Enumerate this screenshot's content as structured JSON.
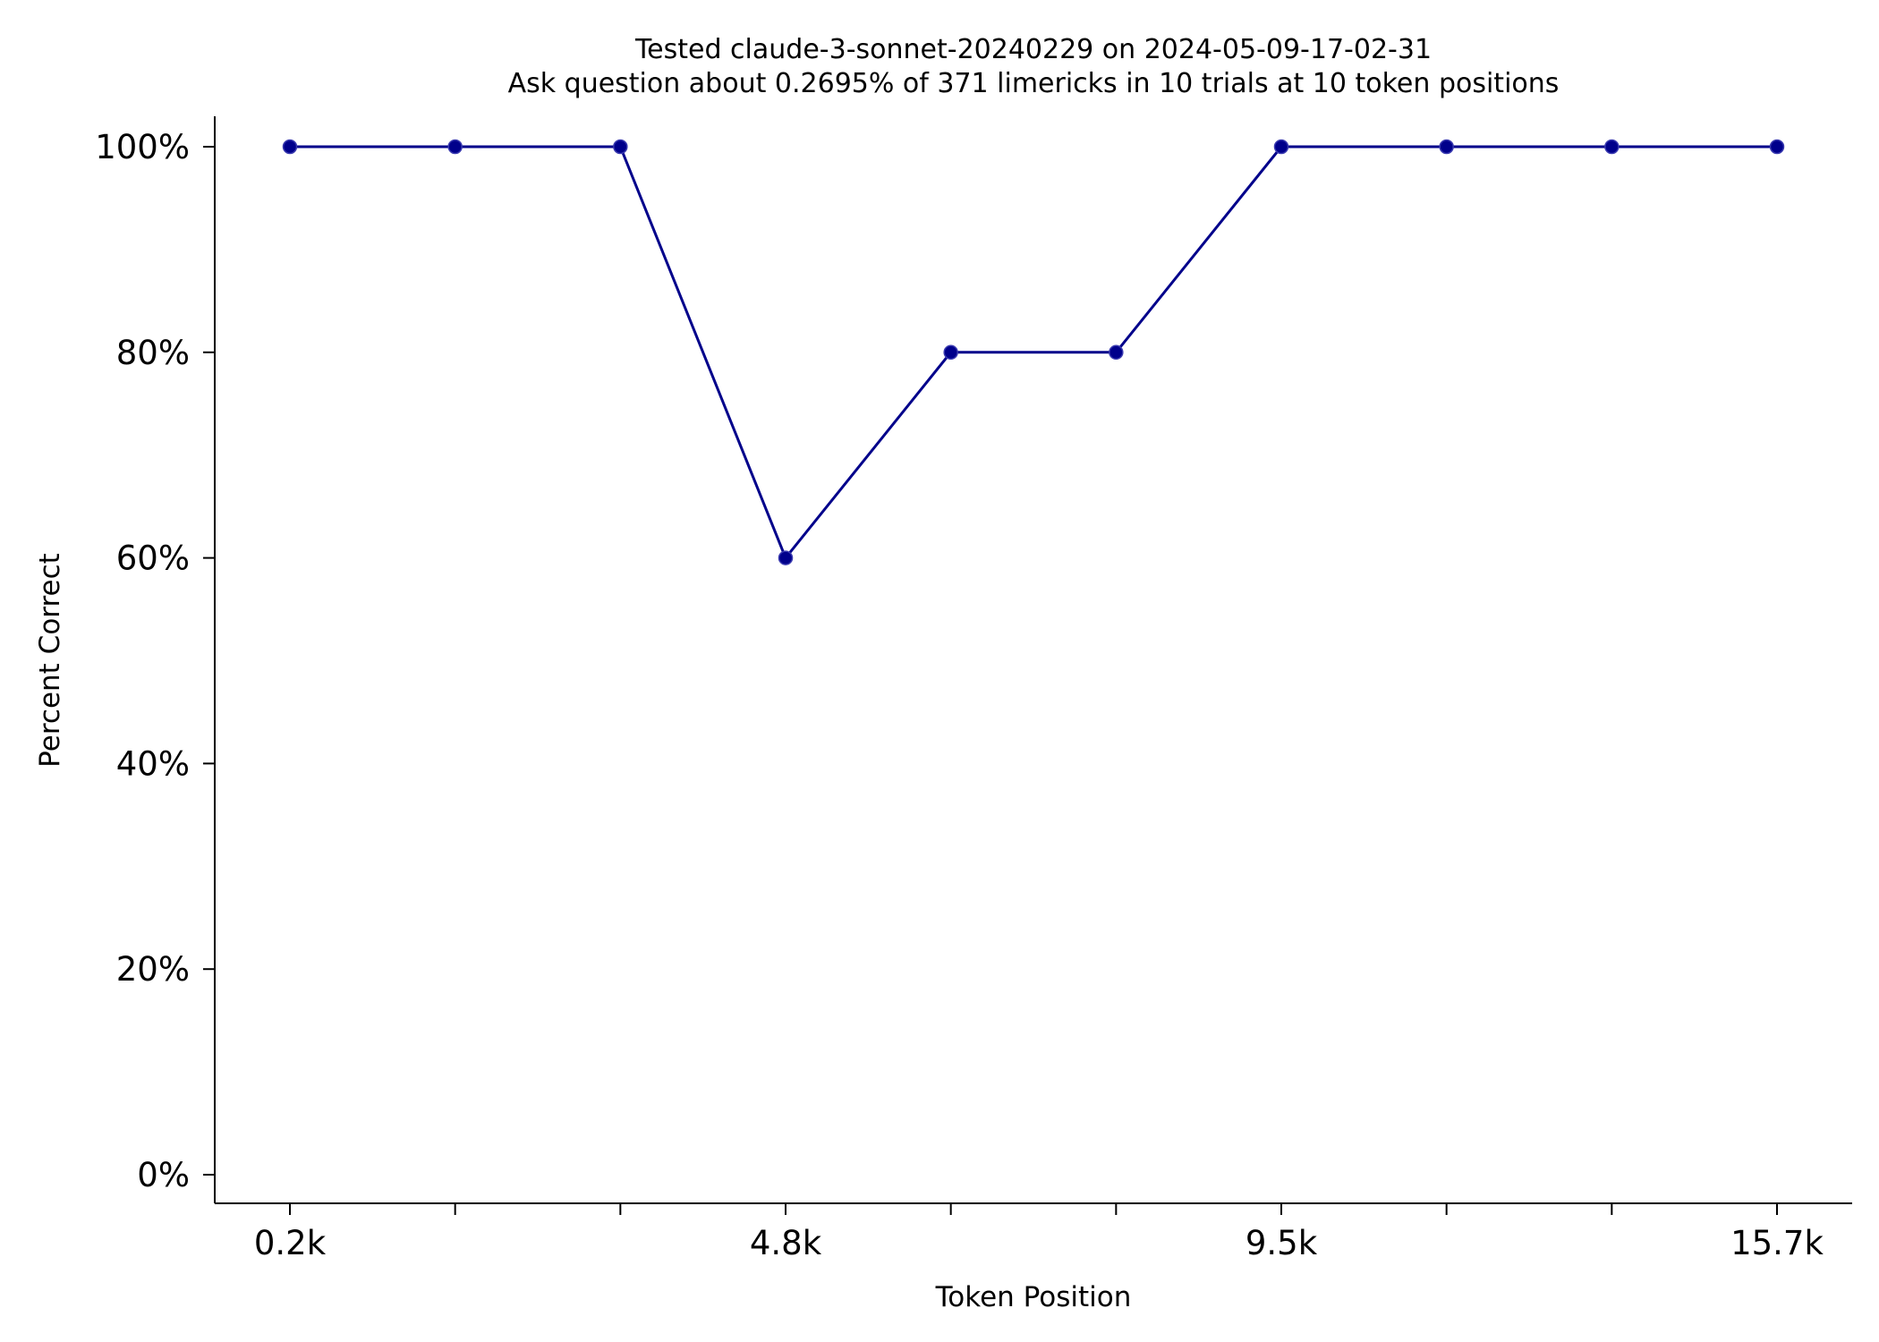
{
  "chart_data": {
    "type": "line",
    "title": "Tested claude-3-sonnet-20240229 on 2024-05-09-17-02-31",
    "subtitle": "Ask question about 0.2695% of 371 limericks in 10 trials at 10 token positions",
    "xlabel": "Token Position",
    "ylabel": "Percent Correct",
    "x_tick_labels": [
      "0.2k",
      "",
      "",
      "4.8k",
      "",
      "",
      "9.5k",
      "",
      "",
      "15.7k"
    ],
    "y_tick_labels": [
      "0%",
      "20%",
      "40%",
      "60%",
      "80%",
      "100%"
    ],
    "y_ticks": [
      0,
      20,
      40,
      60,
      80,
      100
    ],
    "ylim": [
      -3,
      103
    ],
    "grid": false,
    "series": [
      {
        "values": [
          100,
          100,
          100,
          60,
          80,
          80,
          100,
          100,
          100,
          100
        ],
        "color": "#00008b"
      }
    ]
  }
}
